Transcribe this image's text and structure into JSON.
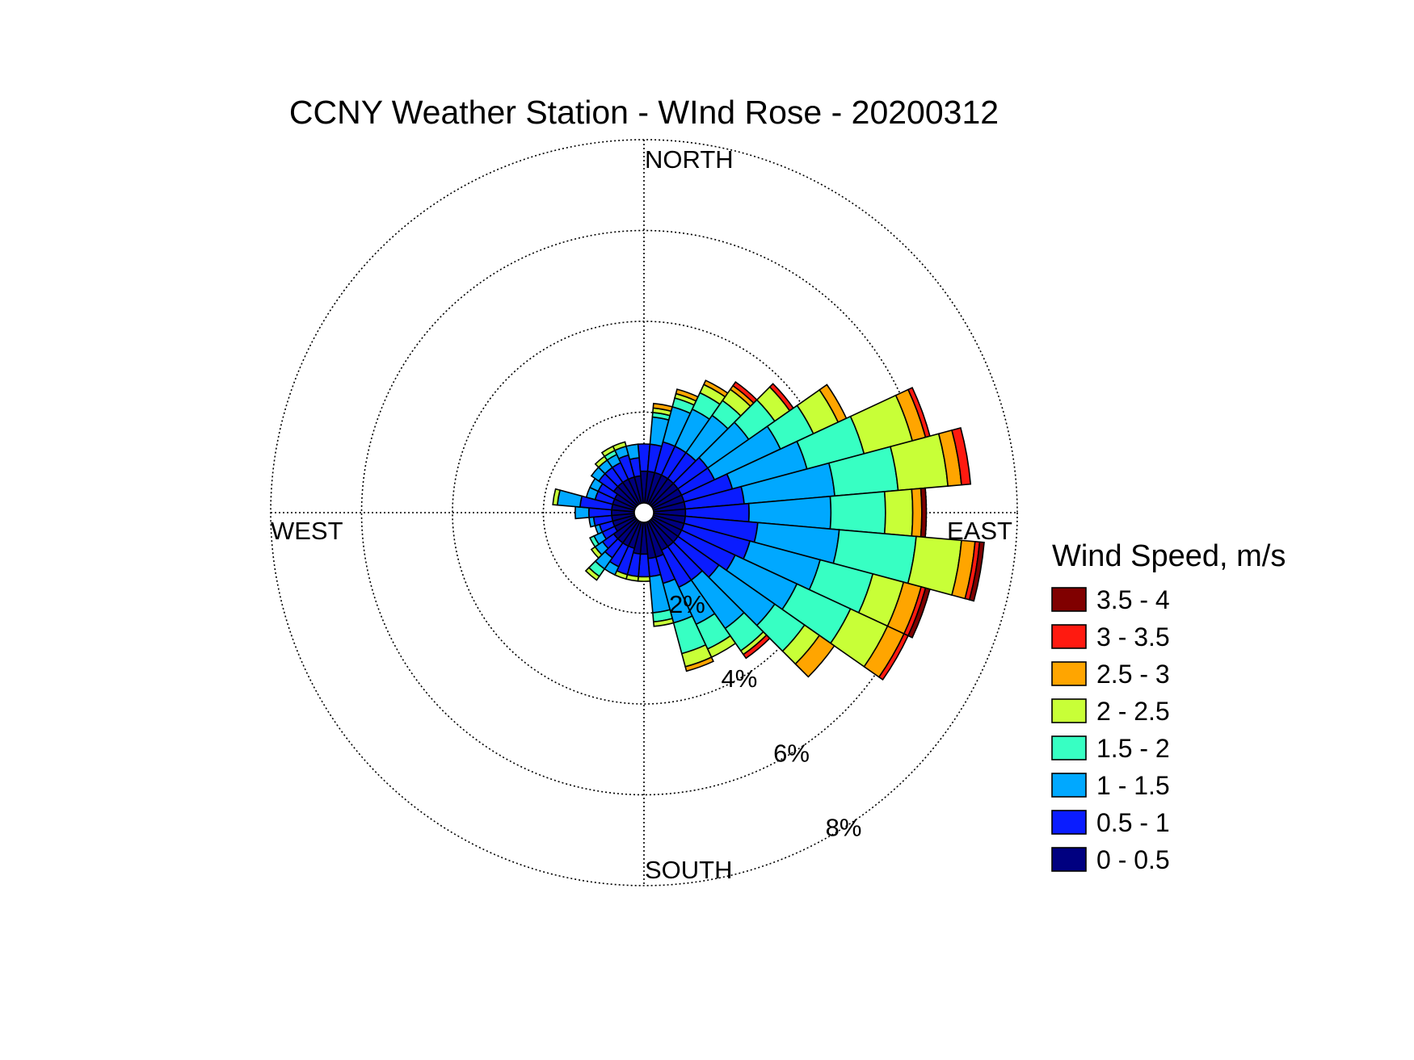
{
  "chart_data": {
    "type": "wind-rose",
    "title": "CCNY Weather Station - WInd Rose - 20200312",
    "compass_labels": {
      "north": "NORTH",
      "east": "EAST",
      "south": "SOUTH",
      "west": "WEST"
    },
    "radial_unit": "%",
    "radial_max": 8,
    "ring_values": [
      2,
      4,
      6,
      8
    ],
    "ring_labels": [
      "2%",
      "4%",
      "6%",
      "8%"
    ],
    "legend": {
      "title": "Wind Speed, m/s",
      "placement": "right",
      "bins": [
        {
          "label": "3.5 - 4",
          "color": "#800000"
        },
        {
          "label": "3 - 3.5",
          "color": "#ff1a10"
        },
        {
          "label": "2.5 - 3",
          "color": "#ffa500"
        },
        {
          "label": "2 - 2.5",
          "color": "#c8ff37"
        },
        {
          "label": "1.5 - 2",
          "color": "#37ffc3"
        },
        {
          "label": "1 - 1.5",
          "color": "#00a8ff"
        },
        {
          "label": "0.5 - 1",
          "color": "#0a1cff"
        },
        {
          "label": "0 - 0.5",
          "color": "#000080"
        }
      ]
    },
    "sector_width_deg": 10,
    "sectors_note": "cumulative frequency (%) at the outer edge of each speed bin, ordered 0-0.5 ... 3.5-4",
    "sectors": [
      {
        "dir": 0,
        "cum": [
          0.7,
          1.3,
          1.3,
          1.3,
          1.3,
          1.3,
          1.3,
          1.3
        ]
      },
      {
        "dir": 10,
        "cum": [
          0.7,
          1.3,
          1.9,
          2.0,
          2.1,
          2.2,
          2.2,
          2.2
        ]
      },
      {
        "dir": 20,
        "cum": [
          0.7,
          1.4,
          2.2,
          2.4,
          2.5,
          2.6,
          2.6,
          2.6
        ]
      },
      {
        "dir": 30,
        "cum": [
          0.7,
          1.4,
          2.3,
          2.7,
          2.9,
          3.0,
          3.0,
          3.0
        ]
      },
      {
        "dir": 40,
        "cum": [
          0.7,
          1.4,
          2.4,
          2.8,
          3.1,
          3.2,
          3.3,
          3.3
        ]
      },
      {
        "dir": 50,
        "cum": [
          0.7,
          1.5,
          2.6,
          3.3,
          3.7,
          3.7,
          3.8,
          3.8
        ]
      },
      {
        "dir": 60,
        "cum": [
          0.7,
          1.5,
          3.1,
          3.9,
          4.5,
          4.7,
          4.7,
          4.7
        ]
      },
      {
        "dir": 70,
        "cum": [
          0.7,
          1.8,
          3.5,
          4.8,
          5.9,
          6.2,
          6.3,
          6.3
        ]
      },
      {
        "dir": 80,
        "cum": [
          0.7,
          2.0,
          4.0,
          5.4,
          6.5,
          6.8,
          7.0,
          7.0
        ]
      },
      {
        "dir": 90,
        "cum": [
          0.7,
          2.1,
          3.9,
          5.1,
          5.7,
          5.9,
          5.9,
          6.0
        ]
      },
      {
        "dir": 100,
        "cum": [
          0.7,
          2.3,
          4.1,
          5.8,
          6.8,
          7.1,
          7.2,
          7.3
        ]
      },
      {
        "dir": 110,
        "cum": [
          0.7,
          2.2,
          3.8,
          5.0,
          5.7,
          6.1,
          6.2,
          6.3
        ]
      },
      {
        "dir": 120,
        "cum": [
          0.7,
          2.0,
          3.5,
          4.8,
          5.7,
          6.1,
          6.2,
          6.2
        ]
      },
      {
        "dir": 130,
        "cum": [
          0.7,
          1.8,
          3.3,
          4.1,
          4.5,
          4.9,
          4.9,
          4.9
        ]
      },
      {
        "dir": 140,
        "cum": [
          0.7,
          1.6,
          2.9,
          3.5,
          3.6,
          3.6,
          3.7,
          3.7
        ]
      },
      {
        "dir": 150,
        "cum": [
          0.7,
          1.6,
          2.5,
          3.1,
          3.3,
          3.3,
          3.3,
          3.3
        ]
      },
      {
        "dir": 160,
        "cum": [
          0.8,
          1.4,
          2.3,
          3.0,
          3.3,
          3.4,
          3.4,
          3.4
        ]
      },
      {
        "dir": 170,
        "cum": [
          0.8,
          1.2,
          2.0,
          2.2,
          2.3,
          2.3,
          2.3,
          2.3
        ]
      },
      {
        "dir": 180,
        "cum": [
          0.7,
          1.2,
          1.2,
          1.2,
          1.3,
          1.3,
          1.3,
          1.3
        ]
      },
      {
        "dir": 190,
        "cum": [
          0.7,
          1.2,
          1.2,
          1.2,
          1.3,
          1.3,
          1.3,
          1.3
        ]
      },
      {
        "dir": 200,
        "cum": [
          0.6,
          1.2,
          1.2,
          1.2,
          1.3,
          1.3,
          1.3,
          1.3
        ]
      },
      {
        "dir": 210,
        "cum": [
          0.6,
          1.1,
          1.3,
          1.3,
          1.3,
          1.3,
          1.3,
          1.3
        ]
      },
      {
        "dir": 220,
        "cum": [
          0.6,
          1.0,
          1.3,
          1.5,
          1.6,
          1.6,
          1.6,
          1.6
        ]
      },
      {
        "dir": 230,
        "cum": [
          0.6,
          0.9,
          1.1,
          1.1,
          1.2,
          1.2,
          1.2,
          1.2
        ]
      },
      {
        "dir": 240,
        "cum": [
          0.5,
          0.8,
          1.0,
          1.1,
          1.1,
          1.1,
          1.1,
          1.1
        ]
      },
      {
        "dir": 250,
        "cum": [
          0.5,
          0.8,
          0.9,
          0.9,
          0.9,
          0.9,
          0.9,
          0.9
        ]
      },
      {
        "dir": 260,
        "cum": [
          0.5,
          0.9,
          1.0,
          1.0,
          1.0,
          1.0,
          1.0,
          1.0
        ]
      },
      {
        "dir": 270,
        "cum": [
          0.5,
          1.0,
          1.3,
          1.3,
          1.3,
          1.3,
          1.3,
          1.3
        ]
      },
      {
        "dir": 280,
        "cum": [
          0.5,
          1.2,
          1.7,
          1.7,
          1.8,
          1.8,
          1.8,
          1.8
        ]
      },
      {
        "dir": 290,
        "cum": [
          0.5,
          0.9,
          1.1,
          1.1,
          1.1,
          1.1,
          1.1,
          1.1
        ]
      },
      {
        "dir": 300,
        "cum": [
          0.5,
          0.9,
          1.1,
          1.1,
          1.1,
          1.1,
          1.1,
          1.1
        ]
      },
      {
        "dir": 310,
        "cum": [
          0.6,
          1.0,
          1.2,
          1.2,
          1.2,
          1.2,
          1.2,
          1.2
        ]
      },
      {
        "dir": 320,
        "cum": [
          0.6,
          1.0,
          1.2,
          1.2,
          1.3,
          1.3,
          1.3,
          1.3
        ]
      },
      {
        "dir": 330,
        "cum": [
          0.6,
          1.0,
          1.2,
          1.3,
          1.4,
          1.4,
          1.4,
          1.4
        ]
      },
      {
        "dir": 340,
        "cum": [
          0.6,
          1.1,
          1.3,
          1.3,
          1.4,
          1.4,
          1.4,
          1.4
        ]
      },
      {
        "dir": 350,
        "cum": [
          0.6,
          1.0,
          1.3,
          1.3,
          1.3,
          1.3,
          1.3,
          1.3
        ]
      }
    ]
  }
}
